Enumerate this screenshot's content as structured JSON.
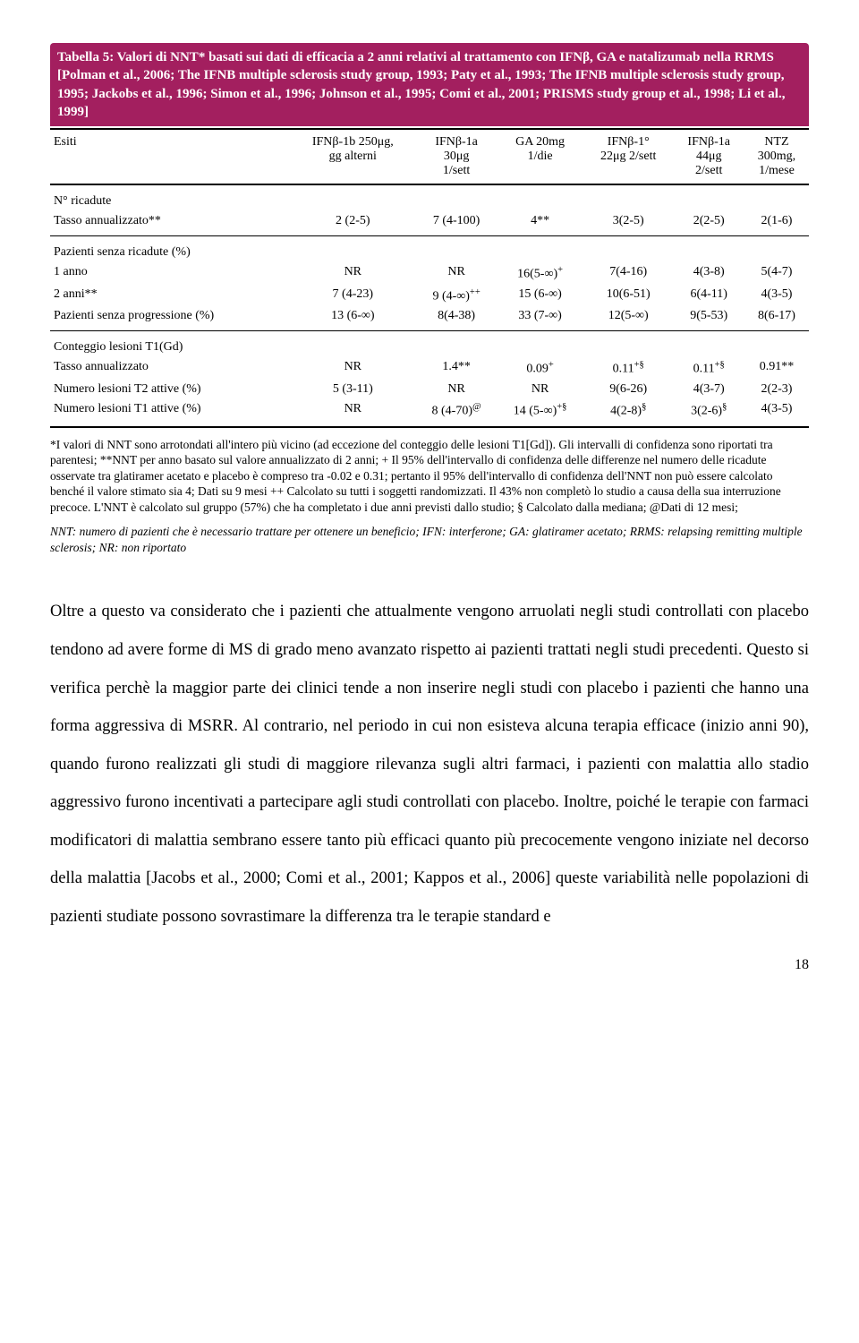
{
  "title": "Tabella 5: Valori di NNT* basati sui dati di efficacia a 2 anni relativi al trattamento con IFNβ, GA e natalizumab nella RRMS [Polman et al., 2006; The IFNB multiple sclerosis study group, 1993; Paty et al., 1993; The IFNB multiple sclerosis study group, 1995; Jackobs et al., 1996; Simon et al., 1996; Johnson et al., 1995; Comi et al., 2001; PRISMS study group et al., 1998; Li et al., 1999]",
  "headers": {
    "c0": "Esiti",
    "c1a": "IFNβ-1b 250μg,",
    "c1b": "gg alterni",
    "c2a": "IFNβ-1a",
    "c2b": "30μg",
    "c2c": "1/sett",
    "c3a": "GA 20mg",
    "c3b": "1/die",
    "c4a": "IFNβ-1°",
    "c4b": "22μg 2/sett",
    "c5a": "IFNβ-1a",
    "c5b": "44μg",
    "c5c": "2/sett",
    "c6a": "NTZ",
    "c6b": "300mg,",
    "c6c": "1/mese"
  },
  "sections": {
    "s1": "N° ricadute",
    "r1": {
      "label": "Tasso annualizzato**",
      "c1": "2 (2-5)",
      "c2": "7 (4-100)",
      "c3": "4**",
      "c4": "3(2-5)",
      "c5": "2(2-5)",
      "c6": "2(1-6)"
    },
    "s2": "Pazienti senza ricadute (%)",
    "r2": {
      "label": "1 anno",
      "c1": "NR",
      "c2": "NR",
      "c3": "16(5-∞)",
      "c3s": "+",
      "c4": "7(4-16)",
      "c5": "4(3-8)",
      "c6": "5(4-7)"
    },
    "r3": {
      "label": "2 anni**",
      "c1": "7 (4-23)",
      "c2": "9 (4-∞)",
      "c2s": "++",
      "c3": "15 (6-∞)",
      "c4": "10(6-51)",
      "c5": "6(4-11)",
      "c6": "4(3-5)"
    },
    "r4": {
      "label": "Pazienti senza progressione (%)",
      "c1": "13 (6-∞)",
      "c2": "8(4-38)",
      "c3": "33 (7-∞)",
      "c4": "12(5-∞)",
      "c5": "9(5-53)",
      "c6": "8(6-17)"
    },
    "s3": "Conteggio lesioni T1(Gd)",
    "r5": {
      "label": "Tasso annualizzato",
      "c1": "NR",
      "c2": "1.4**",
      "c3": "0.09",
      "c3s": "+",
      "c4": "0.11",
      "c4s": "+§",
      "c5": "0.11",
      "c5s": "+§",
      "c6": "0.91**"
    },
    "r6": {
      "label": "Numero lesioni T2 attive (%)",
      "c1": "5 (3-11)",
      "c2": "NR",
      "c3": "NR",
      "c4": "9(6-26)",
      "c5": "4(3-7)",
      "c6": "2(2-3)"
    },
    "r7": {
      "label": "Numero lesioni T1 attive (%)",
      "c1": "NR",
      "c2": "8 (4-70)",
      "c2s": "@",
      "c3": "14 (5-∞)",
      "c3s": "+§",
      "c4": "4(2-8)",
      "c4s": "§",
      "c5": "3(2-6)",
      "c5s": "§",
      "c6": "4(3-5)"
    }
  },
  "foot1": "*I valori di NNT sono arrotondati all'intero più vicino (ad eccezione del conteggio delle lesioni T1[Gd]). Gli intervalli di confidenza sono riportati tra parentesi; **NNT per anno basato sul valore annualizzato di 2 anni; + Il 95% dell'intervallo di confidenza delle differenze nel numero delle ricadute osservate tra glatiramer acetato e placebo è compreso tra -0.02 e 0.31; pertanto il 95% dell'intervallo di confidenza dell'NNT non può essere calcolato benché il valore stimato sia 4;  Dati su 9 mesi ++ Calcolato su tutti i soggetti randomizzati. Il 43% non completò lo studio a causa della sua interruzione precoce. L'NNT è calcolato sul gruppo (57%) che ha completato i due anni  previsti dallo studio; § Calcolato dalla mediana; @Dati di 12 mesi;",
  "foot2": "NNT: numero di pazienti che è necessario trattare per ottenere un beneficio; IFN:  interferone; GA: glatiramer acetato; RRMS: relapsing remitting multiple sclerosis; NR: non riportato",
  "body": "Oltre a questo va considerato che i pazienti che attualmente vengono arruolati negli studi controllati con placebo tendono ad avere forme di MS di grado meno avanzato rispetto ai pazienti trattati negli studi precedenti. Questo si verifica perchè la maggior parte dei clinici tende a non inserire negli studi con placebo i pazienti che hanno una forma aggressiva di MSRR. Al contrario, nel periodo in cui non esisteva alcuna terapia efficace (inizio anni 90), quando furono realizzati gli studi di maggiore rilevanza sugli altri farmaci, i pazienti con malattia allo stadio aggressivo furono incentivati a partecipare agli studi controllati con placebo. Inoltre, poiché le terapie con farmaci modificatori di malattia sembrano essere tanto più efficaci quanto più precocemente vengono iniziate nel decorso della malattia [Jacobs et al., 2000; Comi et al., 2001; Kappos et al., 2006] queste variabilità nelle popolazioni di pazienti studiate possono sovrastimare la differenza tra le terapie standard e",
  "page": "18"
}
